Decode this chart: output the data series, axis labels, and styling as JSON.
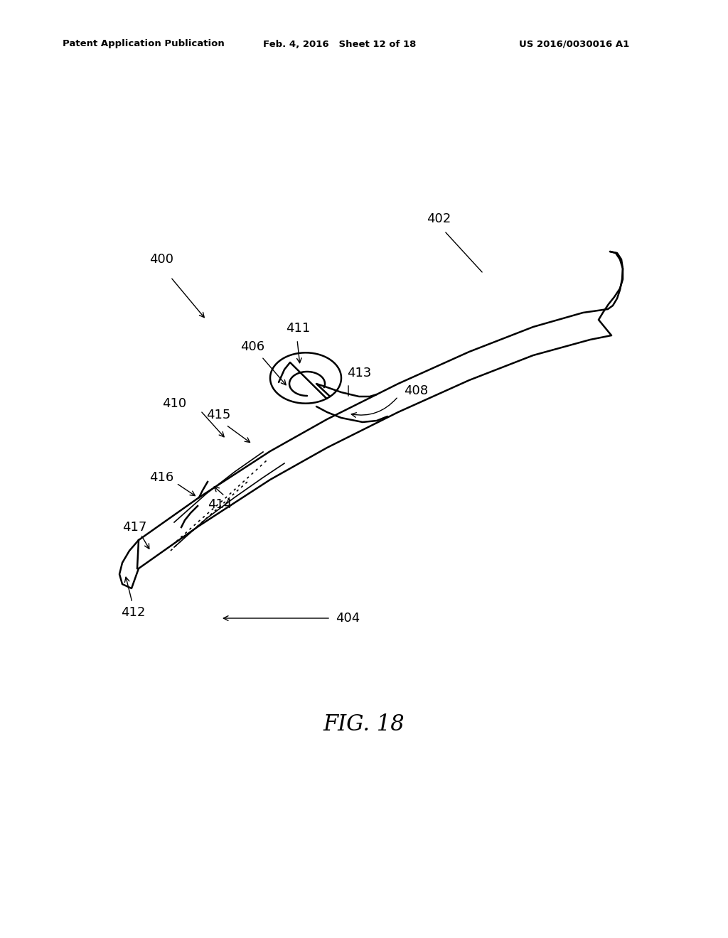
{
  "title": "FIG. 18",
  "header_left": "Patent Application Publication",
  "header_mid": "Feb. 4, 2016   Sheet 12 of 18",
  "header_right": "US 2016/0030016 A1",
  "background_color": "#ffffff",
  "line_color": "#000000",
  "figsize": [
    10.24,
    13.2
  ],
  "dpi": 100
}
